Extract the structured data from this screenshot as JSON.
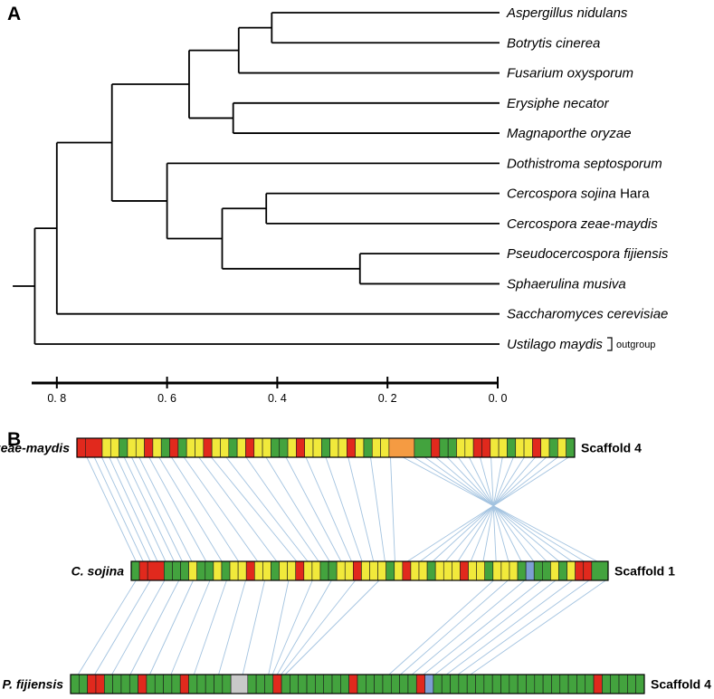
{
  "panels": {
    "a": {
      "label": "A"
    },
    "b": {
      "label": "B"
    }
  },
  "colors": {
    "tree_line": "#000000",
    "link_line": "#a3c3e0",
    "segment_border": "#1a1a1a",
    "segment_palette": {
      "G": "#43a33e",
      "Y": "#f1e93b",
      "R": "#e1291d",
      "O": "#f59b42",
      "X": "#c9c9c9",
      "B": "#7d9fd3"
    }
  },
  "chart_data": [
    {
      "type": "phylogenetic_tree",
      "tips": [
        {
          "label": "Aspergillus nidulans",
          "suffix": ""
        },
        {
          "label": "Botrytis cinerea",
          "suffix": ""
        },
        {
          "label": "Fusarium oxysporum",
          "suffix": ""
        },
        {
          "label": "Erysiphe necator",
          "suffix": ""
        },
        {
          "label": "Magnaporthe oryzae",
          "suffix": ""
        },
        {
          "label": "Dothistroma septosporum",
          "suffix": ""
        },
        {
          "label": "Cercospora sojina",
          "suffix": " Hara"
        },
        {
          "label": "Cercospora zeae-maydis",
          "suffix": ""
        },
        {
          "label": "Pseudocercospora fijiensis",
          "suffix": ""
        },
        {
          "label": "Sphaerulina musiva",
          "suffix": ""
        },
        {
          "label": "Saccharomyces cerevisiae",
          "suffix": ""
        },
        {
          "label": "Ustilago maydis",
          "suffix": "",
          "annotation": "outgroup"
        }
      ],
      "nodes": [
        {
          "id": "n1",
          "children": [
            "t0",
            "t1"
          ],
          "depth": 0.41
        },
        {
          "id": "n2",
          "children": [
            "n1",
            "t2"
          ],
          "depth": 0.47
        },
        {
          "id": "n3",
          "children": [
            "t3",
            "t4"
          ],
          "depth": 0.48
        },
        {
          "id": "n4",
          "children": [
            "n2",
            "n3"
          ],
          "depth": 0.56
        },
        {
          "id": "n5",
          "children": [
            "t6",
            "t7"
          ],
          "depth": 0.42
        },
        {
          "id": "n6",
          "children": [
            "t8",
            "t9"
          ],
          "depth": 0.25
        },
        {
          "id": "n7",
          "children": [
            "n5",
            "n6"
          ],
          "depth": 0.5
        },
        {
          "id": "n8",
          "children": [
            "t5",
            "n7"
          ],
          "depth": 0.6
        },
        {
          "id": "n9",
          "children": [
            "n4",
            "n8"
          ],
          "depth": 0.7
        },
        {
          "id": "n10",
          "children": [
            "n9",
            "t10"
          ],
          "depth": 0.8
        },
        {
          "id": "n11",
          "children": [
            "n10",
            "t11"
          ],
          "depth": 0.84
        }
      ],
      "root_depth": 0.88,
      "axis": {
        "ticks": [
          "0. 8",
          "0. 6",
          "0. 4",
          "0. 2",
          "0. 0"
        ],
        "tick_values": [
          0.8,
          0.6,
          0.4,
          0.2,
          0.0
        ]
      }
    },
    {
      "type": "synteny",
      "tracks": [
        {
          "species": "C. zeae-maydis",
          "scaffold": "Scaffold 4",
          "segments": [
            "R",
            "R2",
            "Y",
            "Y",
            "G",
            "Y",
            "Y",
            "R",
            "Y",
            "G",
            "R",
            "G",
            "Y",
            "Y",
            "R",
            "Y",
            "Y",
            "G",
            "Y",
            "R",
            "Y",
            "Y",
            "G",
            "G",
            "Y",
            "R",
            "Y",
            "Y",
            "G",
            "Y",
            "Y",
            "R",
            "Y",
            "G",
            "Y",
            "Y",
            "O3",
            "G2",
            "R",
            "G",
            "G",
            "Y",
            "Y",
            "R",
            "R",
            "Y",
            "Y",
            "G",
            "Y",
            "Y",
            "R",
            "Y",
            "G",
            "Y",
            "G"
          ]
        },
        {
          "species": "C. sojina",
          "scaffold": "Scaffold 1",
          "segments": [
            "G",
            "R",
            "R2",
            "G",
            "G",
            "G",
            "Y",
            "G",
            "G",
            "Y",
            "G",
            "Y",
            "Y",
            "R",
            "Y",
            "Y",
            "G",
            "Y",
            "Y",
            "R",
            "Y",
            "Y",
            "G",
            "G",
            "Y",
            "Y",
            "R",
            "Y",
            "Y",
            "Y",
            "G",
            "Y",
            "R",
            "Y",
            "Y",
            "G",
            "Y",
            "Y",
            "Y",
            "R",
            "Y",
            "Y",
            "G",
            "Y",
            "Y",
            "Y",
            "G",
            "B",
            "G",
            "G",
            "Y",
            "G",
            "Y",
            "R",
            "R",
            "G2"
          ]
        },
        {
          "species": "P. fijiensis",
          "scaffold": "Scaffold 4",
          "segments": [
            "G",
            "G",
            "R",
            "R",
            "G",
            "G",
            "G",
            "G",
            "R",
            "G",
            "G",
            "G",
            "G",
            "R",
            "G",
            "G",
            "G",
            "G",
            "G",
            "X2",
            "G",
            "G",
            "G",
            "R",
            "G",
            "G",
            "G",
            "G",
            "G",
            "G",
            "G",
            "G",
            "R",
            "G",
            "G",
            "G",
            "G",
            "G",
            "G",
            "G",
            "R",
            "B",
            "G",
            "G",
            "G",
            "G",
            "G",
            "G",
            "G",
            "G",
            "G",
            "G",
            "G",
            "G",
            "G",
            "G",
            "G",
            "G",
            "G",
            "G",
            "G",
            "R",
            "G",
            "G",
            "G",
            "G",
            "G"
          ]
        }
      ],
      "links": [
        {
          "from_track": 0,
          "to_track": 1,
          "pairs": [
            [
              0.02,
              0.01
            ],
            [
              0.035,
              0.025
            ],
            [
              0.05,
              0.04
            ],
            [
              0.065,
              0.055
            ],
            [
              0.08,
              0.072
            ],
            [
              0.095,
              0.09
            ],
            [
              0.11,
              0.107
            ],
            [
              0.125,
              0.127
            ],
            [
              0.145,
              0.157
            ],
            [
              0.165,
              0.19
            ],
            [
              0.19,
              0.225
            ],
            [
              0.215,
              0.265
            ],
            [
              0.245,
              0.305
            ],
            [
              0.27,
              0.347
            ],
            [
              0.3,
              0.37
            ],
            [
              0.34,
              0.393
            ],
            [
              0.38,
              0.416
            ],
            [
              0.42,
              0.44
            ],
            [
              0.46,
              0.462
            ],
            [
              0.5,
              0.484
            ],
            [
              0.545,
              0.508
            ],
            [
              0.59,
              0.532
            ],
            [
              0.63,
              0.553
            ],
            [
              0.655,
              0.977
            ],
            [
              0.677,
              0.95
            ],
            [
              0.699,
              0.924
            ],
            [
              0.721,
              0.897
            ],
            [
              0.744,
              0.871
            ],
            [
              0.766,
              0.844
            ],
            [
              0.788,
              0.818
            ],
            [
              0.81,
              0.791
            ],
            [
              0.832,
              0.765
            ],
            [
              0.855,
              0.738
            ],
            [
              0.877,
              0.712
            ],
            [
              0.899,
              0.685
            ],
            [
              0.921,
              0.659
            ],
            [
              0.943,
              0.632
            ],
            [
              0.966,
              0.606
            ],
            [
              0.988,
              0.579
            ]
          ]
        },
        {
          "from_track": 1,
          "to_track": 2,
          "pairs": [
            [
              0.01,
              0.013
            ],
            [
              0.04,
              0.042
            ],
            [
              0.07,
              0.072
            ],
            [
              0.1,
              0.104
            ],
            [
              0.13,
              0.138
            ],
            [
              0.165,
              0.175
            ],
            [
              0.2,
              0.215
            ],
            [
              0.24,
              0.258
            ],
            [
              0.28,
              0.3
            ],
            [
              0.33,
              0.345
            ],
            [
              0.38,
              0.352
            ],
            [
              0.42,
              0.36
            ],
            [
              0.47,
              0.367
            ],
            [
              0.52,
              0.374
            ],
            [
              0.76,
              0.555
            ],
            [
              0.79,
              0.575
            ],
            [
              0.825,
              0.595
            ],
            [
              0.86,
              0.615
            ],
            [
              0.89,
              0.635
            ],
            [
              0.925,
              0.655
            ],
            [
              0.96,
              0.675
            ],
            [
              0.995,
              0.697
            ]
          ]
        }
      ]
    }
  ]
}
